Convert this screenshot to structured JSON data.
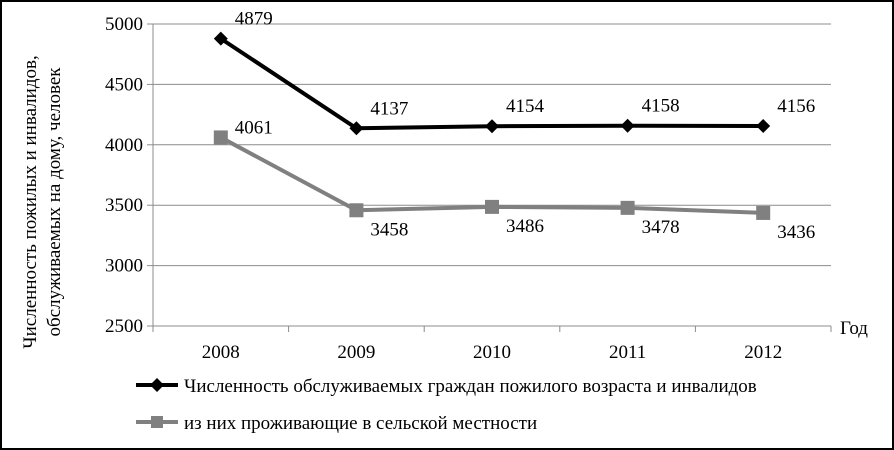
{
  "chart_data": {
    "type": "line",
    "categories": [
      "2008",
      "2009",
      "2010",
      "2011",
      "2012"
    ],
    "series": [
      {
        "name": "Численность обслуживаемых граждан пожилого возраста и инвалидов",
        "values": [
          4879,
          4137,
          4154,
          4158,
          4156
        ],
        "color": "#000000",
        "marker": "diamond",
        "labels": [
          "4879",
          "4137",
          "4154",
          "4158",
          "4156"
        ]
      },
      {
        "name": "из них проживающие в сельской местности",
        "values": [
          4061,
          3458,
          3486,
          3478,
          3436
        ],
        "color": "#808080",
        "marker": "square",
        "labels": [
          "4061",
          "3458",
          "3486",
          "3478",
          "3436"
        ]
      }
    ],
    "ylabel_line1": "Численность пожилых и инвалидов,",
    "ylabel_line2": "обслуживаемых на дому, человек",
    "xlabel": "Год",
    "ylim": [
      2500,
      5000
    ],
    "yticks": [
      "2500",
      "3000",
      "3500",
      "4000",
      "4500",
      "5000"
    ],
    "grid": true,
    "legend_position": "bottom"
  }
}
